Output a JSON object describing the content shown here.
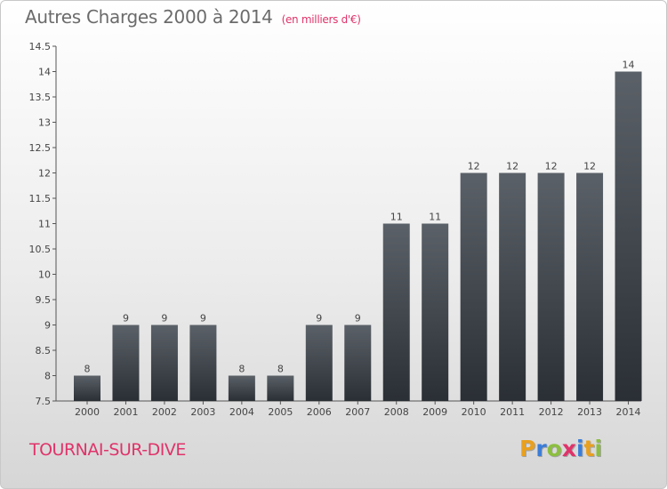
{
  "header": {
    "title": "Autres Charges 2000 à 2014",
    "unit": "(en milliers d'€)"
  },
  "footer": {
    "commune": "TOURNAI-SUR-DIVE",
    "logo": [
      "P",
      "r",
      "o",
      "x",
      "i",
      "t",
      "i"
    ],
    "logo_colors": [
      "#e8a020",
      "#3b7dd8",
      "#8cbf3f",
      "#e0336a",
      "#3b7dd8",
      "#e8a020",
      "#8cbf3f"
    ]
  },
  "colors": {
    "bar_top": "#5b6168",
    "bar_bottom": "#2a2f35",
    "accent": "#e0336a"
  },
  "chart_data": {
    "type": "bar",
    "title": "Autres Charges 2000 à 2014",
    "categories": [
      "2000",
      "2001",
      "2002",
      "2003",
      "2004",
      "2005",
      "2006",
      "2007",
      "2008",
      "2009",
      "2010",
      "2011",
      "2012",
      "2013",
      "2014"
    ],
    "values": [
      8,
      9,
      9,
      9,
      8,
      8,
      9,
      9,
      11,
      11,
      12,
      12,
      12,
      12,
      14
    ],
    "data_labels": [
      "8",
      "9",
      "9",
      "9",
      "8",
      "8",
      "9",
      "9",
      "11",
      "11",
      "12",
      "12",
      "12",
      "12",
      "14"
    ],
    "ylim": [
      7.5,
      14.5
    ],
    "yticks": [
      "7.5",
      "8",
      "8.5",
      "9",
      "9.5",
      "10",
      "10.5",
      "11",
      "11.5",
      "12",
      "12.5",
      "13",
      "13.5",
      "14",
      "14.5"
    ],
    "xlabel": "",
    "ylabel": "",
    "grid": false,
    "legend": "none"
  }
}
